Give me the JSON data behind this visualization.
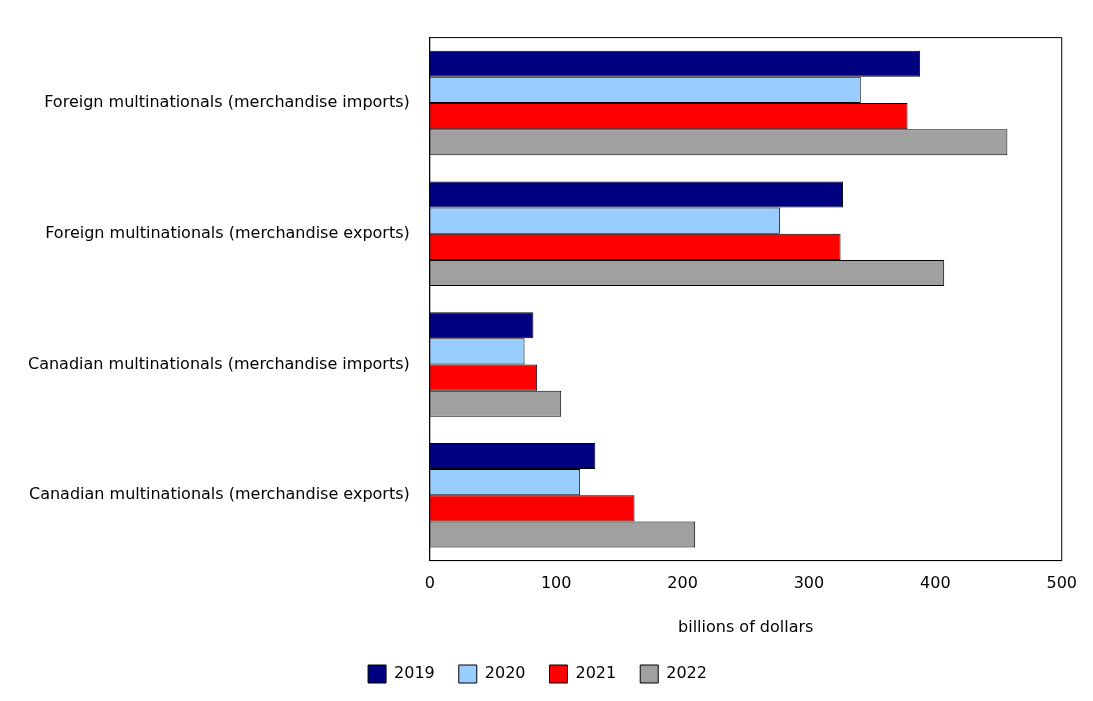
{
  "chart_data": {
    "type": "bar",
    "orientation": "horizontal",
    "xlabel": "billions of dollars",
    "categories": [
      "Foreign multinationals (merchandise imports)",
      "Foreign multinationals (merchandise exports)",
      "Canadian multinationals (merchandise imports)",
      "Canadian multinationals (merchandise exports)"
    ],
    "series": [
      {
        "name": "2019",
        "color": "#000080",
        "values": [
          388,
          327,
          82,
          131
        ]
      },
      {
        "name": "2020",
        "color": "#99ccff",
        "values": [
          341,
          277,
          75,
          119
        ]
      },
      {
        "name": "2021",
        "color": "#ff0000",
        "values": [
          378,
          325,
          85,
          162
        ]
      },
      {
        "name": "2022",
        "color": "#a0a0a0",
        "values": [
          457,
          407,
          104,
          210
        ]
      }
    ],
    "xlim": [
      0,
      500
    ],
    "xticks": [
      0,
      100,
      200,
      300,
      400,
      500
    ],
    "grid": false,
    "legend": "bottom"
  }
}
